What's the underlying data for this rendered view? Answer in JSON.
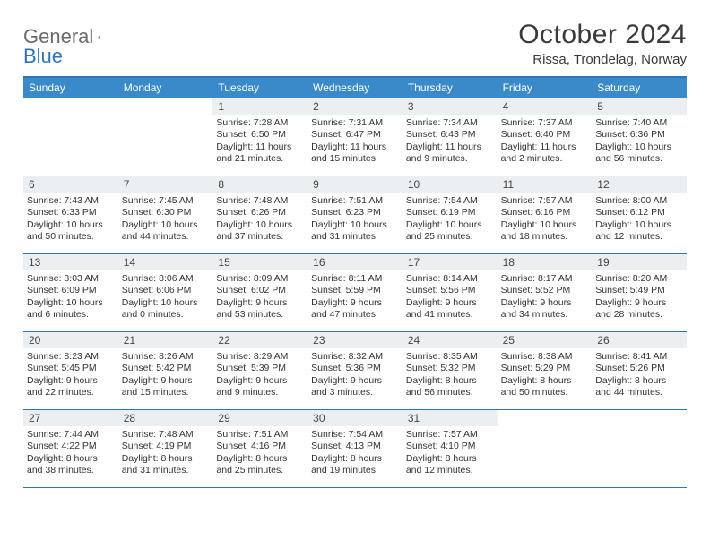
{
  "colors": {
    "accent": "#2e75b6",
    "header_bar": "#3a8ac9",
    "daynum_bg": "#eceff1",
    "text": "#333333",
    "logo_gray": "#6b6b6b",
    "logo_blue": "#2e75b6",
    "background": "#ffffff"
  },
  "logo": {
    "part1": "General",
    "part2": "Blue"
  },
  "title": "October 2024",
  "location": "Rissa, Trondelag, Norway",
  "dow": [
    "Sunday",
    "Monday",
    "Tuesday",
    "Wednesday",
    "Thursday",
    "Friday",
    "Saturday"
  ],
  "layout": {
    "columns": 7,
    "rows": 5,
    "lead_blanks": 2,
    "trail_blanks": 2
  },
  "days": [
    {
      "n": 1,
      "sunrise": "7:28 AM",
      "sunset": "6:50 PM",
      "daylight": "11 hours and 21 minutes."
    },
    {
      "n": 2,
      "sunrise": "7:31 AM",
      "sunset": "6:47 PM",
      "daylight": "11 hours and 15 minutes."
    },
    {
      "n": 3,
      "sunrise": "7:34 AM",
      "sunset": "6:43 PM",
      "daylight": "11 hours and 9 minutes."
    },
    {
      "n": 4,
      "sunrise": "7:37 AM",
      "sunset": "6:40 PM",
      "daylight": "11 hours and 2 minutes."
    },
    {
      "n": 5,
      "sunrise": "7:40 AM",
      "sunset": "6:36 PM",
      "daylight": "10 hours and 56 minutes."
    },
    {
      "n": 6,
      "sunrise": "7:43 AM",
      "sunset": "6:33 PM",
      "daylight": "10 hours and 50 minutes."
    },
    {
      "n": 7,
      "sunrise": "7:45 AM",
      "sunset": "6:30 PM",
      "daylight": "10 hours and 44 minutes."
    },
    {
      "n": 8,
      "sunrise": "7:48 AM",
      "sunset": "6:26 PM",
      "daylight": "10 hours and 37 minutes."
    },
    {
      "n": 9,
      "sunrise": "7:51 AM",
      "sunset": "6:23 PM",
      "daylight": "10 hours and 31 minutes."
    },
    {
      "n": 10,
      "sunrise": "7:54 AM",
      "sunset": "6:19 PM",
      "daylight": "10 hours and 25 minutes."
    },
    {
      "n": 11,
      "sunrise": "7:57 AM",
      "sunset": "6:16 PM",
      "daylight": "10 hours and 18 minutes."
    },
    {
      "n": 12,
      "sunrise": "8:00 AM",
      "sunset": "6:12 PM",
      "daylight": "10 hours and 12 minutes."
    },
    {
      "n": 13,
      "sunrise": "8:03 AM",
      "sunset": "6:09 PM",
      "daylight": "10 hours and 6 minutes."
    },
    {
      "n": 14,
      "sunrise": "8:06 AM",
      "sunset": "6:06 PM",
      "daylight": "10 hours and 0 minutes."
    },
    {
      "n": 15,
      "sunrise": "8:09 AM",
      "sunset": "6:02 PM",
      "daylight": "9 hours and 53 minutes."
    },
    {
      "n": 16,
      "sunrise": "8:11 AM",
      "sunset": "5:59 PM",
      "daylight": "9 hours and 47 minutes."
    },
    {
      "n": 17,
      "sunrise": "8:14 AM",
      "sunset": "5:56 PM",
      "daylight": "9 hours and 41 minutes."
    },
    {
      "n": 18,
      "sunrise": "8:17 AM",
      "sunset": "5:52 PM",
      "daylight": "9 hours and 34 minutes."
    },
    {
      "n": 19,
      "sunrise": "8:20 AM",
      "sunset": "5:49 PM",
      "daylight": "9 hours and 28 minutes."
    },
    {
      "n": 20,
      "sunrise": "8:23 AM",
      "sunset": "5:45 PM",
      "daylight": "9 hours and 22 minutes."
    },
    {
      "n": 21,
      "sunrise": "8:26 AM",
      "sunset": "5:42 PM",
      "daylight": "9 hours and 15 minutes."
    },
    {
      "n": 22,
      "sunrise": "8:29 AM",
      "sunset": "5:39 PM",
      "daylight": "9 hours and 9 minutes."
    },
    {
      "n": 23,
      "sunrise": "8:32 AM",
      "sunset": "5:36 PM",
      "daylight": "9 hours and 3 minutes."
    },
    {
      "n": 24,
      "sunrise": "8:35 AM",
      "sunset": "5:32 PM",
      "daylight": "8 hours and 56 minutes."
    },
    {
      "n": 25,
      "sunrise": "8:38 AM",
      "sunset": "5:29 PM",
      "daylight": "8 hours and 50 minutes."
    },
    {
      "n": 26,
      "sunrise": "8:41 AM",
      "sunset": "5:26 PM",
      "daylight": "8 hours and 44 minutes."
    },
    {
      "n": 27,
      "sunrise": "7:44 AM",
      "sunset": "4:22 PM",
      "daylight": "8 hours and 38 minutes."
    },
    {
      "n": 28,
      "sunrise": "7:48 AM",
      "sunset": "4:19 PM",
      "daylight": "8 hours and 31 minutes."
    },
    {
      "n": 29,
      "sunrise": "7:51 AM",
      "sunset": "4:16 PM",
      "daylight": "8 hours and 25 minutes."
    },
    {
      "n": 30,
      "sunrise": "7:54 AM",
      "sunset": "4:13 PM",
      "daylight": "8 hours and 19 minutes."
    },
    {
      "n": 31,
      "sunrise": "7:57 AM",
      "sunset": "4:10 PM",
      "daylight": "8 hours and 12 minutes."
    }
  ],
  "labels": {
    "sunrise": "Sunrise:",
    "sunset": "Sunset:",
    "daylight": "Daylight:"
  },
  "typography": {
    "title_fontsize": 30,
    "location_fontsize": 15,
    "dow_fontsize": 12,
    "daynum_fontsize": 12,
    "body_fontsize": 10.5,
    "font_family": "Arial"
  }
}
